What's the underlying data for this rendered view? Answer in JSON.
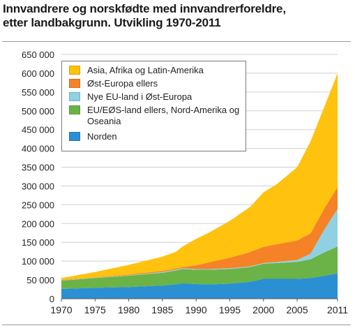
{
  "chart_data": {
    "type": "area",
    "stacked": true,
    "title": "Innvandrere og norskfødte med innvandrerforeldre,",
    "subtitle": "etter landbakgrunn. Utvikling 1970-2011",
    "xlabel": "",
    "ylabel": "",
    "xlim": [
      1970,
      2011
    ],
    "ylim": [
      0,
      650000
    ],
    "x_ticks": [
      "1970",
      "1975",
      "1980",
      "1985",
      "1990",
      "1995",
      "2000",
      "2005",
      "2011"
    ],
    "y_ticks": [
      "0",
      "50 000",
      "100 000",
      "150 000",
      "200 000",
      "250 000",
      "300 000",
      "350 000",
      "400 000",
      "450 000",
      "500 000",
      "550 000",
      "600 000",
      "650 000"
    ],
    "grid": true,
    "legend_position": "top-left",
    "x": [
      1970,
      1975,
      1980,
      1985,
      1987,
      1988,
      1990,
      1992,
      1995,
      1998,
      2000,
      2002,
      2005,
      2007,
      2009,
      2011
    ],
    "series": [
      {
        "name": "Norden",
        "color": "#2b8fd3",
        "values": [
          26000,
          29000,
          31000,
          35000,
          38000,
          41000,
          39000,
          38000,
          40000,
          45000,
          53000,
          53000,
          53000,
          55000,
          61000,
          67000
        ]
      },
      {
        "name": "EU/EØS-land ellers, Nord-Amerika og Oseania",
        "color": "#6bb346",
        "values": [
          22000,
          26000,
          30000,
          34000,
          37000,
          38000,
          38000,
          39000,
          39000,
          39000,
          40000,
          42000,
          45000,
          50000,
          62000,
          72000
        ]
      },
      {
        "name": "Nye EU-land i Øst-Europa",
        "color": "#8fd1e2",
        "values": [
          1000,
          1000,
          1000,
          2000,
          2000,
          2000,
          2000,
          2000,
          2000,
          2000,
          2000,
          3000,
          5000,
          15000,
          60000,
          100000
        ]
      },
      {
        "name": "Øst-Europa ellers",
        "color": "#f58226",
        "values": [
          1000,
          1000,
          2000,
          3000,
          3000,
          3000,
          10000,
          18000,
          28000,
          38000,
          43000,
          47000,
          52000,
          54000,
          56000,
          58000
        ]
      },
      {
        "name": "Asia, Afrika og Latin-Amerika",
        "color": "#ffc20e",
        "values": [
          5000,
          14000,
          26000,
          38000,
          45000,
          55000,
          70000,
          80000,
          98000,
          120000,
          145000,
          160000,
          195000,
          245000,
          270000,
          303000
        ]
      }
    ]
  }
}
